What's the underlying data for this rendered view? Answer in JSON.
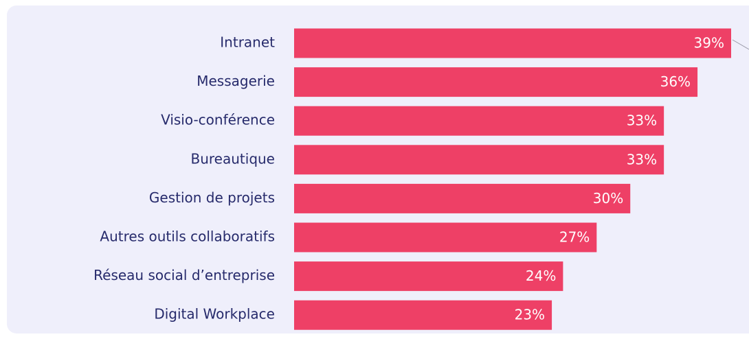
{
  "chart_data": {
    "type": "bar",
    "orientation": "horizontal",
    "categories": [
      "Intranet",
      "Messagerie",
      "Visio-conférence",
      "Bureautique",
      "Gestion de projets",
      "Autres outils collaboratifs",
      "Réseau social d’entreprise",
      "Digital Workplace"
    ],
    "values": [
      39,
      36,
      33,
      33,
      30,
      27,
      24,
      23
    ],
    "value_labels": [
      "39%",
      "36%",
      "33%",
      "33%",
      "30%",
      "27%",
      "24%",
      "23%"
    ],
    "color": "#ee4066"
  }
}
